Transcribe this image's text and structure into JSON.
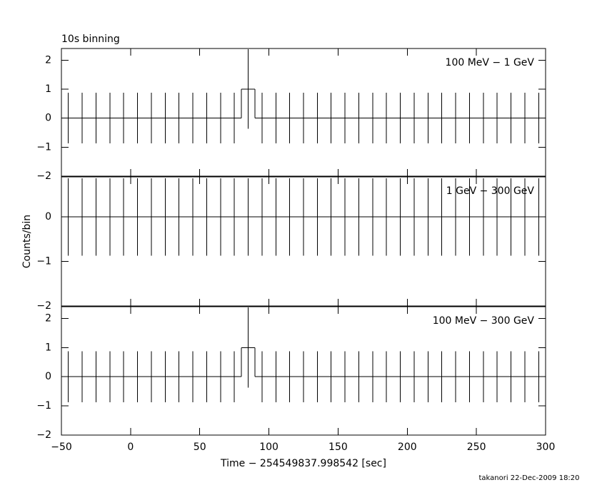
{
  "chart_data": [
    {
      "type": "step",
      "title": "10s binning",
      "label": "100 MeV − 1 GeV",
      "x": [
        -45,
        -35,
        -25,
        -15,
        -5,
        5,
        15,
        25,
        35,
        45,
        55,
        65,
        75,
        85,
        95,
        105,
        115,
        125,
        135,
        145,
        155,
        165,
        175,
        185,
        195,
        205,
        215,
        225,
        235,
        245,
        255,
        265,
        275,
        285,
        295
      ],
      "values": [
        0,
        0,
        0,
        0,
        0,
        0,
        0,
        0,
        0,
        0,
        0,
        0,
        0,
        1,
        0,
        0,
        0,
        0,
        0,
        0,
        0,
        0,
        0,
        0,
        0,
        0,
        0,
        0,
        0,
        0,
        0,
        0,
        0,
        0,
        0
      ],
      "errors": [
        0.87,
        0.87,
        0.87,
        0.87,
        0.87,
        0.87,
        0.87,
        0.87,
        0.87,
        0.87,
        0.87,
        0.87,
        0.87,
        1.37,
        0.87,
        0.87,
        0.87,
        0.87,
        0.87,
        0.87,
        0.87,
        0.87,
        0.87,
        0.87,
        0.87,
        0.87,
        0.87,
        0.87,
        0.87,
        0.87,
        0.87,
        0.87,
        0.87,
        0.87,
        0.87
      ],
      "xlim": [
        -50,
        300
      ],
      "ylim": [
        -2,
        2.4
      ],
      "yticks": [
        -2,
        -1,
        0,
        1,
        2
      ]
    },
    {
      "type": "step",
      "label": "1 GeV − 300 GeV",
      "y_label": "Counts/bin",
      "x": [
        -45,
        -35,
        -25,
        -15,
        -5,
        5,
        15,
        25,
        35,
        45,
        55,
        65,
        75,
        85,
        95,
        105,
        115,
        125,
        135,
        145,
        155,
        165,
        175,
        185,
        195,
        205,
        215,
        225,
        235,
        245,
        255,
        265,
        275,
        285,
        295
      ],
      "values": [
        0,
        0,
        0,
        0,
        0,
        0,
        0,
        0,
        0,
        0,
        0,
        0,
        0,
        0,
        0,
        0,
        0,
        0,
        0,
        0,
        0,
        0,
        0,
        0,
        0,
        0,
        0,
        0,
        0,
        0,
        0,
        0,
        0,
        0,
        0
      ],
      "errors": [
        0.87,
        0.87,
        0.87,
        0.87,
        0.87,
        0.87,
        0.87,
        0.87,
        0.87,
        0.87,
        0.87,
        0.87,
        0.87,
        0.87,
        0.87,
        0.87,
        0.87,
        0.87,
        0.87,
        0.87,
        0.87,
        0.87,
        0.87,
        0.87,
        0.87,
        0.87,
        0.87,
        0.87,
        0.87,
        0.87,
        0.87,
        0.87,
        0.87,
        0.87,
        0.87
      ],
      "xlim": [
        -50,
        300
      ],
      "ylim": [
        -2,
        0.9
      ],
      "yticks": [
        -2,
        -1,
        0
      ]
    },
    {
      "type": "step",
      "label": "100 MeV − 300 GeV",
      "x_label": "Time − 254549837.998542 [sec]",
      "x": [
        -45,
        -35,
        -25,
        -15,
        -5,
        5,
        15,
        25,
        35,
        45,
        55,
        65,
        75,
        85,
        95,
        105,
        115,
        125,
        135,
        145,
        155,
        165,
        175,
        185,
        195,
        205,
        215,
        225,
        235,
        245,
        255,
        265,
        275,
        285,
        295
      ],
      "values": [
        0,
        0,
        0,
        0,
        0,
        0,
        0,
        0,
        0,
        0,
        0,
        0,
        0,
        1,
        0,
        0,
        0,
        0,
        0,
        0,
        0,
        0,
        0,
        0,
        0,
        0,
        0,
        0,
        0,
        0,
        0,
        0,
        0,
        0,
        0
      ],
      "errors": [
        0.87,
        0.87,
        0.87,
        0.87,
        0.87,
        0.87,
        0.87,
        0.87,
        0.87,
        0.87,
        0.87,
        0.87,
        0.87,
        1.37,
        0.87,
        0.87,
        0.87,
        0.87,
        0.87,
        0.87,
        0.87,
        0.87,
        0.87,
        0.87,
        0.87,
        0.87,
        0.87,
        0.87,
        0.87,
        0.87,
        0.87,
        0.87,
        0.87,
        0.87,
        0.87
      ],
      "xlim": [
        -50,
        300
      ],
      "xticks": [
        -50,
        0,
        50,
        100,
        150,
        200,
        250,
        300
      ],
      "ylim": [
        -2,
        2.4
      ],
      "yticks": [
        -2,
        -1,
        0,
        1,
        2
      ]
    }
  ],
  "footer": "takanori 22-Dec-2009 18:20"
}
